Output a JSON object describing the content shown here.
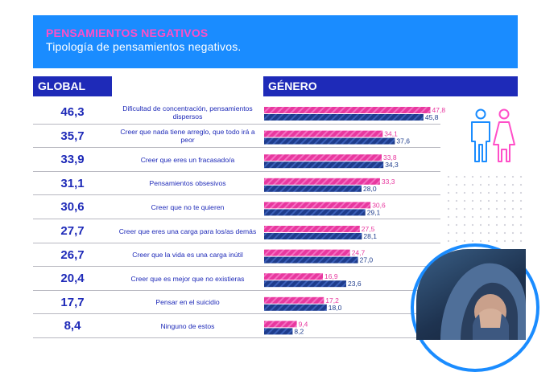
{
  "header": {
    "title": "PENSAMIENTOS NEGATIVOS",
    "subtitle": "Tipología de pensamientos negativos."
  },
  "columns": {
    "global": "GLOBAL",
    "genero": "GÉNERO"
  },
  "colors": {
    "banner": "#1a8cff",
    "title_pink": "#ff4fc8",
    "header_navy": "#1e2ab8",
    "female_bar": "#e8389f",
    "male_bar": "#1e3c8c"
  },
  "icons": [
    "male-figure-icon",
    "female-figure-icon"
  ],
  "chart_data": {
    "type": "bar",
    "orientation": "horizontal",
    "categories": [
      "Dificultad de concentración, pensamientos dispersos",
      "Creer que nada tiene arreglo, que todo irá a peor",
      "Creer que eres un fracasado/a",
      "Pensamientos obsesivos",
      "Creer que no te quieren",
      "Creer que eres una carga para los/as demás",
      "Creer que la vida es una carga inútil",
      "Creer que es mejor que no existieras",
      "Pensar en el suicidio",
      "Ninguno de estos"
    ],
    "global_values": [
      46.3,
      35.7,
      33.9,
      31.1,
      30.6,
      27.7,
      26.7,
      20.4,
      17.7,
      8.4
    ],
    "global_labels": [
      "46,3",
      "35,7",
      "33,9",
      "31,1",
      "30,6",
      "27,7",
      "26,7",
      "20,4",
      "17,7",
      "8,4"
    ],
    "series": [
      {
        "values": [
          47.8,
          34.1,
          33.8,
          33.3,
          30.6,
          27.5,
          24.7,
          16.9,
          17.2,
          9.4
        ],
        "labels": [
          "47,8",
          "34,1",
          "33,8",
          "33,3",
          "30,6",
          "27,5",
          "24,7",
          "16,9",
          "17,2",
          "9,4"
        ]
      },
      {
        "values": [
          45.8,
          37.6,
          34.3,
          28.0,
          29.1,
          28.1,
          27.0,
          23.6,
          18.0,
          8.2
        ],
        "labels": [
          "45,8",
          "37,6",
          "34,3",
          "28,0",
          "29,1",
          "28,1",
          "27,0",
          "23,6",
          "18,0",
          "8,2"
        ]
      }
    ],
    "xlim": [
      0,
      50
    ],
    "grid": false
  }
}
